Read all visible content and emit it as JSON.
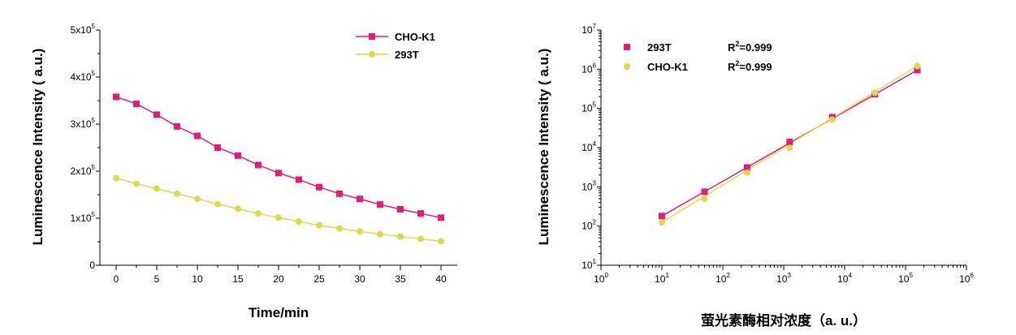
{
  "colors": {
    "magenta": "#E8197A",
    "yellow": "#DBDB45",
    "axis": "#000000"
  },
  "chart_data": [
    {
      "type": "line",
      "xlabel": "Time/min",
      "ylabel": "Luminescence Intensity ( a.u.)",
      "xlim": [
        -2,
        42
      ],
      "ylim": [
        0,
        500000
      ],
      "x_ticks": [
        "0",
        "5",
        "10",
        "15",
        "20",
        "25",
        "30",
        "35",
        "40"
      ],
      "y_ticks": [
        {
          "mant": "0",
          "exp": ""
        },
        {
          "mant": "1x10",
          "exp": "5"
        },
        {
          "mant": "2x10",
          "exp": "5"
        },
        {
          "mant": "3x10",
          "exp": "5"
        },
        {
          "mant": "4x10",
          "exp": "5"
        },
        {
          "mant": "5x10",
          "exp": "5"
        }
      ],
      "legend_position": "top-right",
      "series": [
        {
          "name": "CHO-K1",
          "color": "#E8197A",
          "marker": "square",
          "x": [
            0,
            2.5,
            5,
            7.5,
            10,
            12.5,
            15,
            17.5,
            20,
            22.5,
            25,
            27.5,
            30,
            32.5,
            35,
            37.5,
            40
          ],
          "y": [
            358000,
            343000,
            320000,
            295000,
            275000,
            250000,
            233000,
            213000,
            196000,
            182000,
            166000,
            152000,
            141000,
            129000,
            119000,
            110000,
            101000
          ]
        },
        {
          "name": "293T",
          "color": "#DBDB45",
          "marker": "circle",
          "x": [
            0,
            2.5,
            5,
            7.5,
            10,
            12.5,
            15,
            17.5,
            20,
            22.5,
            25,
            27.5,
            30,
            32.5,
            35,
            37.5,
            40
          ],
          "y": [
            185000,
            173000,
            163000,
            152000,
            141000,
            130000,
            120000,
            110000,
            101000,
            93000,
            85000,
            78000,
            72000,
            66000,
            61000,
            56000,
            51000
          ]
        }
      ]
    },
    {
      "type": "scatter",
      "xscale": "log",
      "yscale": "log",
      "xlabel": "萤光素酶相对浓度（a. u.）",
      "ylabel": "Luminescence Intensity ( a.u.)",
      "xlim": [
        1,
        1000000
      ],
      "ylim": [
        10,
        10000000
      ],
      "x_ticks": [
        {
          "mant": "10",
          "exp": "0"
        },
        {
          "mant": "10",
          "exp": "1"
        },
        {
          "mant": "10",
          "exp": "2"
        },
        {
          "mant": "10",
          "exp": "3"
        },
        {
          "mant": "10",
          "exp": "4"
        },
        {
          "mant": "10",
          "exp": "5"
        },
        {
          "mant": "10",
          "exp": "6"
        }
      ],
      "y_ticks": [
        {
          "mant": "10",
          "exp": "1"
        },
        {
          "mant": "10",
          "exp": "2"
        },
        {
          "mant": "10",
          "exp": "3"
        },
        {
          "mant": "10",
          "exp": "4"
        },
        {
          "mant": "10",
          "exp": "5"
        },
        {
          "mant": "10",
          "exp": "6"
        },
        {
          "mant": "10",
          "exp": "7"
        }
      ],
      "legend_position": "top-left",
      "series": [
        {
          "name": "293T",
          "color": "#E8197A",
          "marker": "square",
          "r2_label": "R",
          "r2_exp": "2",
          "r2_value": "=0.999",
          "x": [
            10,
            50,
            250,
            1250,
            6250,
            31250,
            156250
          ],
          "y": [
            180,
            750,
            3100,
            14000,
            60000,
            230000,
            950000
          ]
        },
        {
          "name": "CHO-K1",
          "color": "#DBDB45",
          "marker": "circle",
          "r2_label": "R",
          "r2_exp": "2",
          "r2_value": "=0.999",
          "x": [
            10,
            50,
            250,
            1250,
            6250,
            31250,
            156250
          ],
          "y": [
            125,
            500,
            2300,
            9800,
            52000,
            250000,
            1200000
          ]
        }
      ]
    }
  ]
}
